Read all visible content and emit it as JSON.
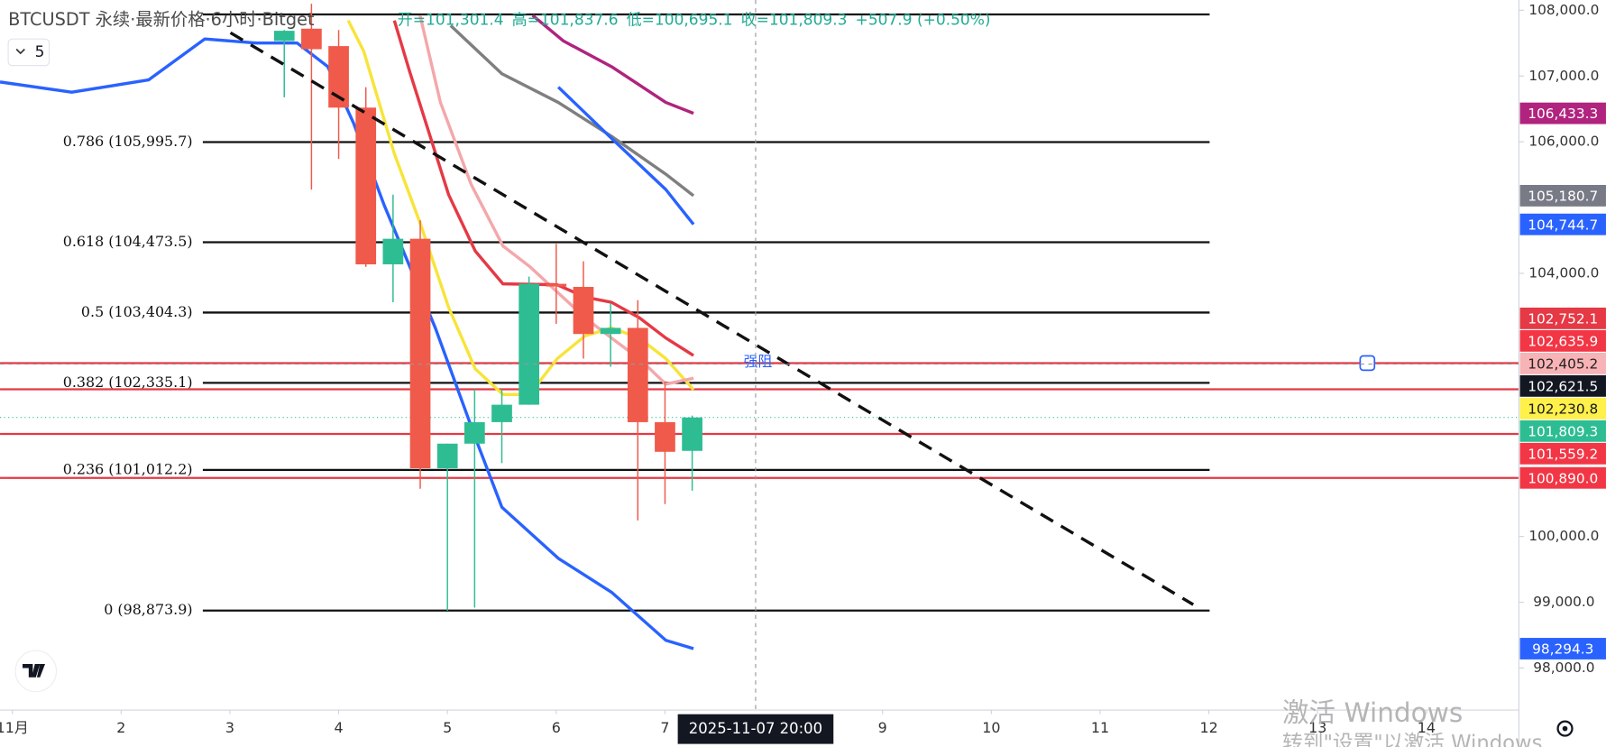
{
  "chart_data": {
    "type": "candlestick",
    "title": "BTCUSDT 永续·最新价格·6小时·Bitget",
    "ohlc_header": [
      "开=101,301.4",
      "高=101,837.6",
      "低=100,695.1",
      "收=101,809.3",
      "+507.9 (+0.50%)"
    ],
    "indicator_count": "5",
    "xlim": [
      0.887,
      14.85
    ],
    "ylim": [
      97360,
      108156
    ],
    "xticks": [
      {
        "value": 1,
        "label": "11月"
      },
      2,
      3,
      4,
      5,
      6,
      7,
      9,
      10,
      11,
      12,
      13,
      14
    ],
    "yticks": [
      {
        "value": 108000,
        "label": "108,000.0"
      },
      {
        "value": 107000,
        "label": "107,000.0"
      },
      {
        "value": 106000,
        "label": "106,000.0"
      },
      {
        "value": 104000,
        "label": "104,000.0"
      },
      {
        "value": 100000,
        "label": "100,000.0"
      },
      {
        "value": 99000,
        "label": "99,000.0"
      },
      {
        "value": 98000,
        "label": "98,000.0"
      }
    ],
    "up_color": "#2ebd93",
    "down_color": "#f05a4a",
    "candles": {
      "x": [
        3.5,
        3.75,
        4.0,
        4.25,
        4.5,
        4.75,
        5.0,
        5.25,
        5.5,
        5.75,
        6.0,
        6.25,
        6.5,
        6.75,
        7.0,
        7.25
      ],
      "open": [
        107533,
        107720,
        107455,
        106520,
        104137,
        104526,
        101037,
        101411,
        101738,
        102003,
        103841,
        103794,
        103078,
        103171,
        101738,
        101301.4
      ],
      "high": [
        107700,
        108100,
        107700,
        106830,
        105196,
        104807,
        101411,
        102237,
        102237,
        103950,
        104449,
        104184,
        103545,
        103592,
        102361,
        101837.6
      ],
      "low": [
        106676,
        105274,
        105741,
        104100,
        103561,
        100726,
        98872,
        98919,
        101115,
        102003,
        103233,
        102704,
        102579,
        100243,
        100492,
        100695.1
      ],
      "close": [
        107688,
        107408,
        106520,
        104137,
        104526,
        101037,
        101411,
        101738,
        102003,
        103841,
        103800,
        103078,
        103171,
        101738,
        101287,
        101809.3
      ]
    },
    "series": [
      {
        "color": "#2962ff",
        "x": [
          0.887,
          1.546,
          2.252,
          2.77,
          3.241,
          3.618,
          3.9,
          4.136,
          4.418,
          4.653,
          4.889,
          5.266,
          5.501,
          6.019,
          6.508,
          7.008,
          7.262
        ],
        "values": [
          106910,
          106754,
          106941,
          107564,
          107502,
          107502,
          107143,
          106287,
          105040,
          104106,
          103171,
          101458,
          100445,
          99667,
          99153,
          98421,
          98294.3
        ]
      },
      {
        "color": "#f7e43a",
        "x": [
          4.088,
          4.23,
          4.512,
          4.757,
          5.011,
          5.256,
          5.51,
          5.755,
          6.009,
          6.264,
          6.508,
          6.763,
          7.008,
          7.262
        ],
        "values": [
          107844,
          107377,
          105819,
          104729,
          103483,
          102548,
          102159,
          102159,
          102704,
          103047,
          103171,
          103016,
          102704,
          102230.8
        ]
      },
      {
        "color": "#f4a7aa",
        "x": [
          4.748,
          4.936,
          5.218,
          5.51,
          5.755,
          6.009,
          6.264,
          6.508,
          6.763,
          7.008,
          7.262
        ],
        "values": [
          107922,
          106598,
          105352,
          104417,
          104106,
          103717,
          103327,
          103016,
          102704,
          102315,
          102405.2
        ]
      },
      {
        "color": "#e53945",
        "x": [
          4.512,
          4.653,
          5.011,
          5.256,
          5.51,
          6.009,
          6.264,
          6.508,
          6.763,
          7.008,
          7.262
        ],
        "values": [
          107844,
          107065,
          105196,
          104340,
          103841,
          103826,
          103639,
          103561,
          103327,
          103016,
          102752.1
        ]
      },
      {
        "color": "#7f7f7f",
        "x": [
          5.03,
          5.501,
          6.019,
          6.508,
          7.008,
          7.262
        ],
        "values": [
          107766,
          107034,
          106598,
          106084,
          105508,
          105180.7
        ]
      },
      {
        "color": "#2962ff",
        "x": [
          6.019,
          6.508,
          7.008,
          7.262
        ],
        "values": [
          106832,
          106053,
          105274,
          104744.7
        ]
      },
      {
        "color": "#b0237e",
        "x": [
          5.783,
          6.066,
          6.508,
          7.008,
          7.262
        ],
        "values": [
          107922,
          107533,
          107143,
          106598,
          106433.3
        ]
      }
    ],
    "fib_levels": [
      {
        "value": 107937
      },
      {
        "value": 105995.7,
        "label": "0.786 (105,995.7)"
      },
      {
        "value": 104473.5,
        "label": "0.618 (104,473.5)"
      },
      {
        "value": 103404.3,
        "label": "0.5 (103,404.3)"
      },
      {
        "value": 102335.1,
        "label": "0.382 (102,335.1)"
      },
      {
        "value": 101012.2,
        "label": "0.236 (101,012.2)"
      },
      {
        "value": 98873.9,
        "label": "0 (98,873.9)"
      }
    ],
    "hlines": [
      {
        "value": 102635.9,
        "text": "强阻"
      },
      {
        "value": 102237
      },
      {
        "value": 101559.2
      },
      {
        "value": 100890.0
      }
    ],
    "price_tags": [
      {
        "value": 106433.3,
        "label": "106,433.3",
        "color": "#b0237e",
        "text_color": "#ffffff"
      },
      {
        "value": 105180.7,
        "label": "105,180.7",
        "color": "#787b86",
        "text_color": "#ffffff"
      },
      {
        "value": 104744.7,
        "label": "104,744.7",
        "color": "#2962ff",
        "text_color": "#ffffff"
      },
      {
        "value": 102752.1,
        "label": "102,752.1",
        "color": "#e53945",
        "text_color": "#ffffff"
      },
      {
        "value": 102635.9,
        "label": "102,635.9",
        "color": "#f23645",
        "text_color": "#ffffff"
      },
      {
        "value": 102405.2,
        "label": "102,405.2",
        "color": "#f7b3b6",
        "text_color": "#222222"
      },
      {
        "value": 102621.5,
        "label": "102,621.5",
        "color": "#131722",
        "text_color": "#ffffff"
      },
      {
        "value": 102230.8,
        "label": "102,230.8",
        "color": "#fff04a",
        "text_color": "#131722"
      },
      {
        "value": 101809.3,
        "label": "101,809.3",
        "color": "#2ebd93",
        "text_color": "#ffffff"
      },
      {
        "value": 101559.2,
        "label": "101,559.2",
        "color": "#f23645",
        "text_color": "#ffffff"
      },
      {
        "value": 100890.0,
        "label": "100,890.0",
        "color": "#f23645",
        "text_color": "#ffffff"
      },
      {
        "value": 98294.3,
        "label": "98,294.3",
        "color": "#2962ff",
        "text_color": "#ffffff"
      }
    ],
    "crosshair": {
      "x": 7.833,
      "label": "2025-11-07  20:00"
    },
    "watermark": {
      "title": "激活 Windows",
      "subtitle": "转到\"设置\"以激活 Windows"
    }
  }
}
